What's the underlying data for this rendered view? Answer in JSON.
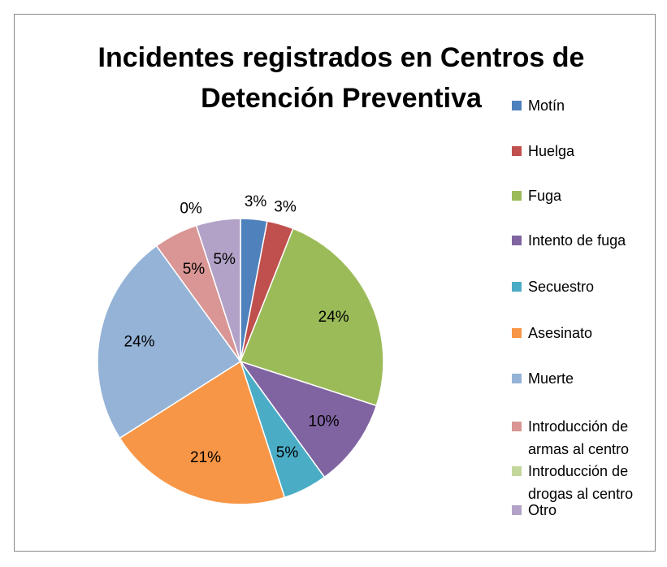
{
  "chart_data": {
    "type": "pie",
    "title": "Incidentes registrados en Centros de Detención Preventiva",
    "categories": [
      "Motín",
      "Huelga",
      "Fuga",
      "Intento de fuga",
      "Secuestro",
      "Asesinato",
      "Muerte",
      "Introducción de armas al centro",
      "Introducción de drogas al centro",
      "Otro"
    ],
    "values": [
      3,
      3,
      24,
      10,
      5,
      21,
      24,
      5,
      0,
      5
    ],
    "value_labels": [
      "3%",
      "3%",
      "24%",
      "10%",
      "5%",
      "21%",
      "24%",
      "5%",
      "0%",
      "5%"
    ],
    "colors": [
      "#4f81bd",
      "#c0504d",
      "#9bbb59",
      "#8064a2",
      "#4bacc6",
      "#f79646",
      "#95b3d7",
      "#d99694",
      "#c3d69b",
      "#b3a2c7"
    ],
    "legend": "right"
  }
}
